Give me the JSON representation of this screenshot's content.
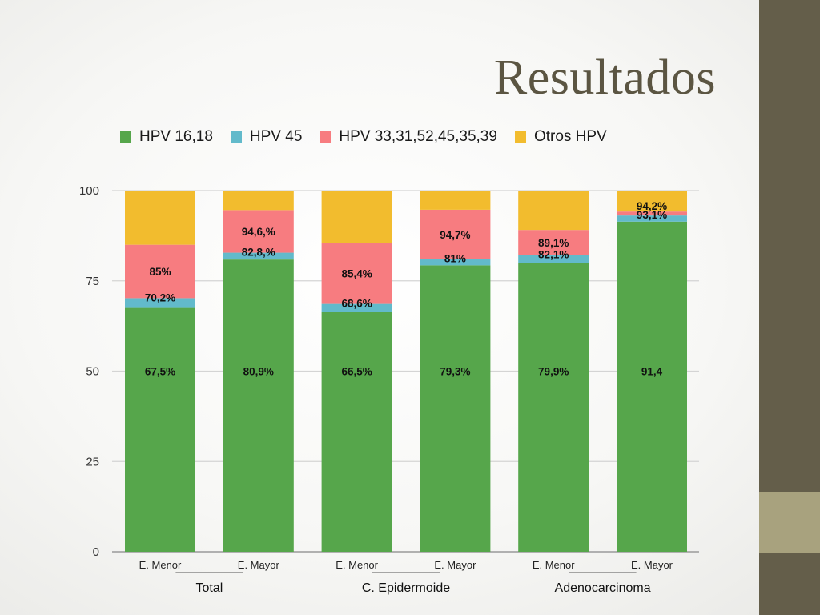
{
  "slide": {
    "title": "Resultados"
  },
  "colors": {
    "side_band": "#645e4a",
    "side_accent": "#a8a27e",
    "title": "#5b5542"
  },
  "chart_data": {
    "type": "bar",
    "stacked": true,
    "categories": [
      "E. Menor",
      "E. Mayor",
      "E. Menor",
      "E. Mayor",
      "E. Menor",
      "E. Mayor"
    ],
    "groups": [
      {
        "label": "Total",
        "categories": [
          0,
          1
        ]
      },
      {
        "label": "C. Epidermoide",
        "categories": [
          2,
          3
        ]
      },
      {
        "label": "Adenocarcinoma",
        "categories": [
          4,
          5
        ]
      }
    ],
    "series": [
      {
        "name": "HPV 16,18",
        "color": "#56a64b",
        "values": [
          67.5,
          80.9,
          66.5,
          79.3,
          79.9,
          91.4
        ]
      },
      {
        "name": "HPV 45",
        "color": "#62bacb",
        "values": [
          2.7,
          1.9,
          2.1,
          1.7,
          2.2,
          1.7
        ]
      },
      {
        "name": "HPV 33,31,52,45,35,39",
        "color": "#f77c80",
        "values": [
          14.8,
          11.8,
          16.8,
          13.7,
          7.0,
          1.1
        ]
      },
      {
        "name": "Otros HPV",
        "color": "#f2bc2e",
        "values": [
          15.0,
          5.4,
          14.6,
          5.3,
          10.9,
          5.8
        ]
      }
    ],
    "labels": [
      [
        "67,5%",
        "70,2%",
        "85%",
        ""
      ],
      [
        "80,9%",
        "82,8,%",
        "94,6,%",
        ""
      ],
      [
        "66,5%",
        "68,6%",
        "85,4%",
        ""
      ],
      [
        "79,3%",
        "81%",
        "94,7%",
        ""
      ],
      [
        "79,9%",
        "82,1%",
        "89,1%",
        ""
      ],
      [
        "91,4",
        "93,1%",
        "94,2%",
        ""
      ]
    ],
    "yticks": [
      "0",
      "25",
      "50",
      "75",
      "100"
    ],
    "ylim": [
      0,
      100
    ],
    "grid": true,
    "legend": "top"
  }
}
